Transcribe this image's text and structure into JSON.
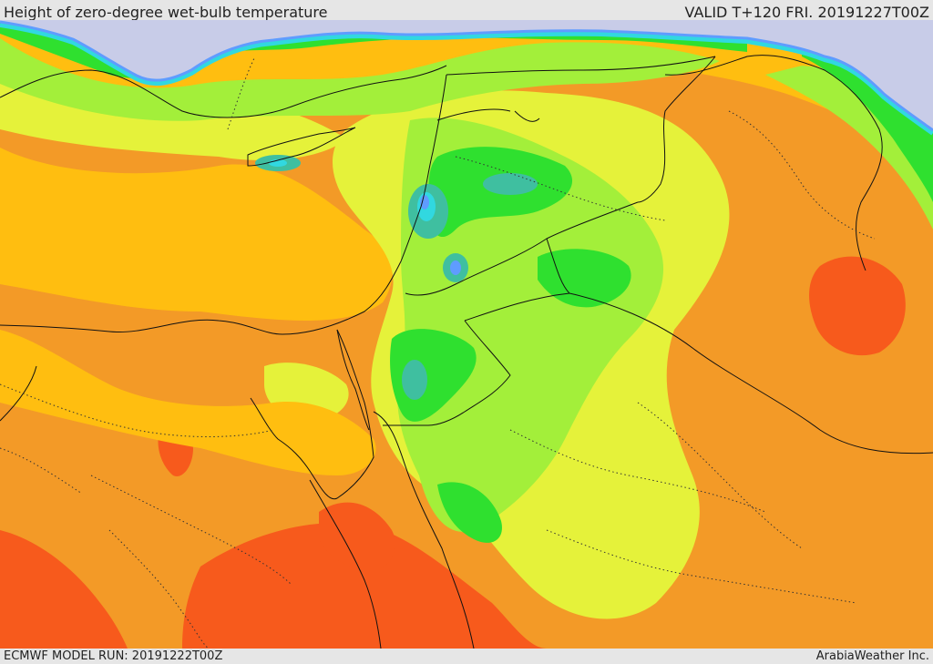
{
  "header": {
    "title": "Height of zero-degree wet-bulb temperature",
    "valid": "VALID T+120 FRI. 20191227T00Z"
  },
  "footer": {
    "model_run": "ECMWF MODEL RUN: 20191222T00Z",
    "credit": "ArabiaWeather Inc."
  },
  "colors": {
    "sea_cold": "#c8cde8",
    "blue": "#5fa0ff",
    "cyan": "#31e0e0",
    "teal": "#3fc0a0",
    "green": "#2fe02f",
    "light_green": "#9ef03a",
    "yellow": "#e6f23a",
    "gold": "#ffc20a",
    "orange": "#f7a21e",
    "dark_orange": "#f08a2a",
    "red_orange": "#f75a1c",
    "border": "#111111"
  }
}
